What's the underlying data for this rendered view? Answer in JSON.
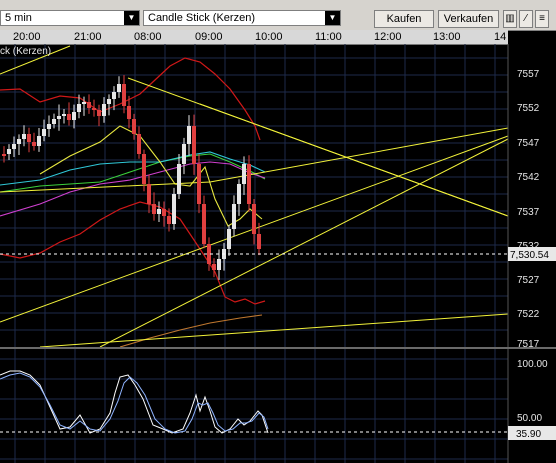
{
  "toolbar": {
    "left_value": "5 min",
    "chart_type": "Candle Stick (Kerzen)",
    "buy_label": "Kaufen",
    "sell_label": "Verkaufen",
    "tool_icons": [
      "bar-chart-icon",
      "line-draw-icon",
      "fibonacci-icon"
    ]
  },
  "time_labels": [
    "20:00",
    "21:00",
    "08:00",
    "09:00",
    "10:00",
    "11:00",
    "12:00",
    "13:00",
    "14"
  ],
  "indicator_title": "ck (Kerzen)",
  "price_axis": {
    "labels": [
      "7557",
      "7552",
      "7547",
      "7542",
      "7537",
      "7532",
      "7527",
      "7522",
      "7517"
    ],
    "current_price": "7,530.54"
  },
  "oscillator_axis": {
    "labels": [
      "100.00",
      "50.00"
    ],
    "current_value": "35.90"
  },
  "colors": {
    "background": "#000000",
    "grid": "#1e2a4a",
    "bollinger": "#d01818",
    "trendline": "#f2f23a",
    "up_candle": "#e6e6e6",
    "down_candle": "#e04040"
  }
}
